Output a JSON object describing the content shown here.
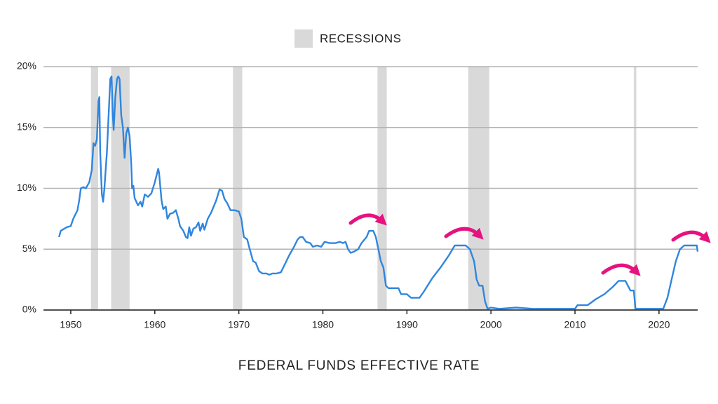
{
  "chart_data": {
    "type": "line",
    "title": "FEDERAL FUNDS EFFECTIVE RATE",
    "recession_label": "RECESSIONS",
    "recession_color": "#d9d9d9",
    "recessions": [
      [
        1952.4,
        1953.25
      ],
      [
        1954.8,
        1957.0
      ],
      [
        1969.3,
        1970.4
      ],
      [
        1986.5,
        1987.6
      ],
      [
        1997.3,
        1999.8
      ],
      [
        2017.0,
        2017.3
      ]
    ],
    "xlim": [
      1946.75,
      2024.6
    ],
    "xticks": [
      1950,
      1960,
      1970,
      1980,
      1990,
      2000,
      2010,
      2020
    ],
    "ylim": [
      0,
      20
    ],
    "yticks": [
      {
        "value": 0,
        "label": "0%"
      },
      {
        "value": 5,
        "label": "5%"
      },
      {
        "value": 10,
        "label": "10%"
      },
      {
        "value": 15,
        "label": "15%"
      },
      {
        "value": 20,
        "label": "20%"
      }
    ],
    "grid": true,
    "x": [
      1948.6,
      1948.8,
      1949.5,
      1950.0,
      1950.3,
      1950.8,
      1951.0,
      1951.2,
      1951.5,
      1951.8,
      1952.2,
      1952.5,
      1952.7,
      1952.9,
      1953.1,
      1953.3,
      1953.4,
      1953.5,
      1953.7,
      1953.85,
      1954.0,
      1954.3,
      1954.5,
      1954.7,
      1954.85,
      1955.0,
      1955.1,
      1955.3,
      1955.5,
      1955.65,
      1955.8,
      1956.0,
      1956.2,
      1956.4,
      1956.6,
      1956.8,
      1957.0,
      1957.2,
      1957.3,
      1957.45,
      1957.6,
      1958.0,
      1958.3,
      1958.5,
      1958.8,
      1959.2,
      1959.6,
      1960.0,
      1960.4,
      1960.5,
      1960.8,
      1961.0,
      1961.3,
      1961.5,
      1961.8,
      1962.2,
      1962.5,
      1962.8,
      1963.0,
      1963.4,
      1963.7,
      1963.9,
      1964.1,
      1964.3,
      1964.6,
      1964.9,
      1965.2,
      1965.4,
      1965.7,
      1965.9,
      1966.3,
      1966.7,
      1967.0,
      1967.3,
      1967.7,
      1968.0,
      1968.3,
      1968.6,
      1969.0,
      1969.5,
      1970.0,
      1970.3,
      1970.6,
      1971.0,
      1971.3,
      1971.7,
      1972.0,
      1972.4,
      1972.8,
      1973.3,
      1973.6,
      1974.0,
      1974.5,
      1975.0,
      1975.5,
      1976.0,
      1976.5,
      1977.0,
      1977.3,
      1977.6,
      1978.0,
      1978.5,
      1978.8,
      1979.3,
      1979.8,
      1980.2,
      1980.8,
      1981.5,
      1982.0,
      1982.4,
      1982.7,
      1983.0,
      1983.3,
      1983.7,
      1984.2,
      1984.6,
      1985.2,
      1985.5,
      1986.0,
      1986.3,
      1986.6,
      1986.9,
      1987.2,
      1987.5,
      1987.8,
      1988.5,
      1989.0,
      1989.3,
      1990.0,
      1990.5,
      1991.5,
      1992.0,
      1993.0,
      1994.0,
      1995.0,
      1995.7,
      1997.0,
      1997.5,
      1998.0,
      1998.3,
      1998.6,
      1999.0,
      1999.3,
      1999.6,
      2000.0,
      2001.0,
      2003.0,
      2005.0,
      2008.0,
      2010.0,
      2010.3,
      2011.5,
      2012.5,
      2013.5,
      2014.5,
      2015.2,
      2016.0,
      2016.3,
      2016.6,
      2017.0,
      2017.2,
      2018.0,
      2020.0,
      2020.5,
      2021.0,
      2021.5,
      2022.0,
      2022.5,
      2023.0,
      2024.5,
      2024.6
    ],
    "series": [
      {
        "name": "Federal funds effective rate",
        "color": "#2f86de",
        "values": [
          6.0,
          6.5,
          6.8,
          6.9,
          7.5,
          8.2,
          9.0,
          10.0,
          10.1,
          10.0,
          10.5,
          11.5,
          13.7,
          13.5,
          14.0,
          17.2,
          17.5,
          13.0,
          9.5,
          8.9,
          10.0,
          13.0,
          16.0,
          19.0,
          19.2,
          16.0,
          14.8,
          17.5,
          19.0,
          19.2,
          19.0,
          16.0,
          15.0,
          12.5,
          14.5,
          15.0,
          14.3,
          12.0,
          10.0,
          10.2,
          9.2,
          8.6,
          8.9,
          8.5,
          9.5,
          9.3,
          9.6,
          10.5,
          11.6,
          11.3,
          9.0,
          8.3,
          8.5,
          7.5,
          7.9,
          8.0,
          8.2,
          7.5,
          6.9,
          6.5,
          6.0,
          5.9,
          6.8,
          6.1,
          6.7,
          6.8,
          7.2,
          6.5,
          7.1,
          6.6,
          7.5,
          8.0,
          8.5,
          9.0,
          9.9,
          9.8,
          9.1,
          8.8,
          8.2,
          8.2,
          8.1,
          7.5,
          6.0,
          5.8,
          5.0,
          4.0,
          3.9,
          3.2,
          3.0,
          3.0,
          2.9,
          3.0,
          3.0,
          3.1,
          3.8,
          4.5,
          5.1,
          5.8,
          6.0,
          6.0,
          5.6,
          5.5,
          5.2,
          5.3,
          5.2,
          5.6,
          5.5,
          5.5,
          5.6,
          5.5,
          5.6,
          5.0,
          4.7,
          4.8,
          5.0,
          5.5,
          6.0,
          6.5,
          6.5,
          6.0,
          5.0,
          4.0,
          3.5,
          2.0,
          1.8,
          1.8,
          1.8,
          1.3,
          1.3,
          1.0,
          1.0,
          1.5,
          2.6,
          3.5,
          4.5,
          5.3,
          5.3,
          5.0,
          4.0,
          2.5,
          2.0,
          2.0,
          0.7,
          0.1,
          0.2,
          0.1,
          0.2,
          0.1,
          0.1,
          0.1,
          0.4,
          0.4,
          0.9,
          1.3,
          1.9,
          2.4,
          2.4,
          2.0,
          1.6,
          1.6,
          0.1,
          0.1,
          0.1,
          0.1,
          1.0,
          2.5,
          4.0,
          5.0,
          5.3,
          5.3,
          4.8
        ]
      }
    ]
  }
}
